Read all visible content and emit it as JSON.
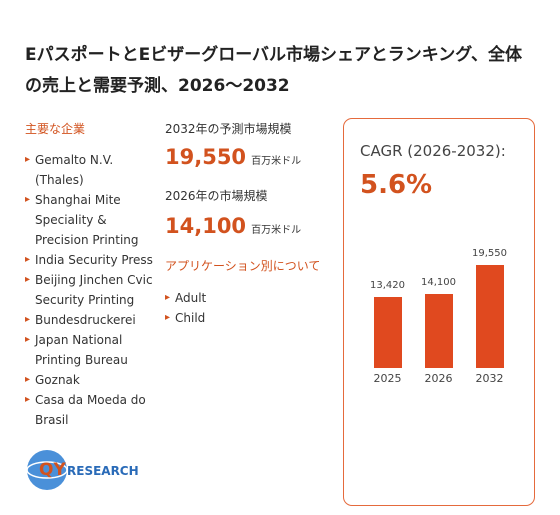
{
  "header": {
    "title": "Eパスポート​とEビザーグローバル市場シェアとランキング、全体の売上と需要予測、2026～2032"
  },
  "companies": {
    "heading": "主要な企業",
    "items": [
      "Gemalto N.V. (Thales)",
      "Shanghai Mite Speciality & Precision Printing",
      "India Security Press",
      "Beijing Jinchen Cvic Security Printing",
      "Bundesdruckerei",
      "Japan National Printing Bureau",
      "Goznak",
      "Casa da Moeda do Brasil"
    ]
  },
  "market": {
    "forecast_label": "2032年の予測市場規模",
    "forecast_value": "19,550",
    "forecast_unit": "百万米ドル",
    "current_label": "2026年の市場規模",
    "current_value": "14,100",
    "current_unit": "百万米ドル"
  },
  "applications": {
    "heading": "アプリケーション別について",
    "items": [
      "Adult",
      "Child"
    ]
  },
  "cagr": {
    "label": "CAGR (2026-2032):",
    "value": "5.6%"
  },
  "logo": {
    "mark": "QY",
    "text": "RESEARCH"
  },
  "chart_data": {
    "type": "bar",
    "categories": [
      "2025",
      "2026",
      "2032"
    ],
    "values": [
      13420,
      14100,
      19550
    ],
    "value_labels": [
      "13,420",
      "14,100",
      "19,550"
    ],
    "color": "#e0491f"
  }
}
